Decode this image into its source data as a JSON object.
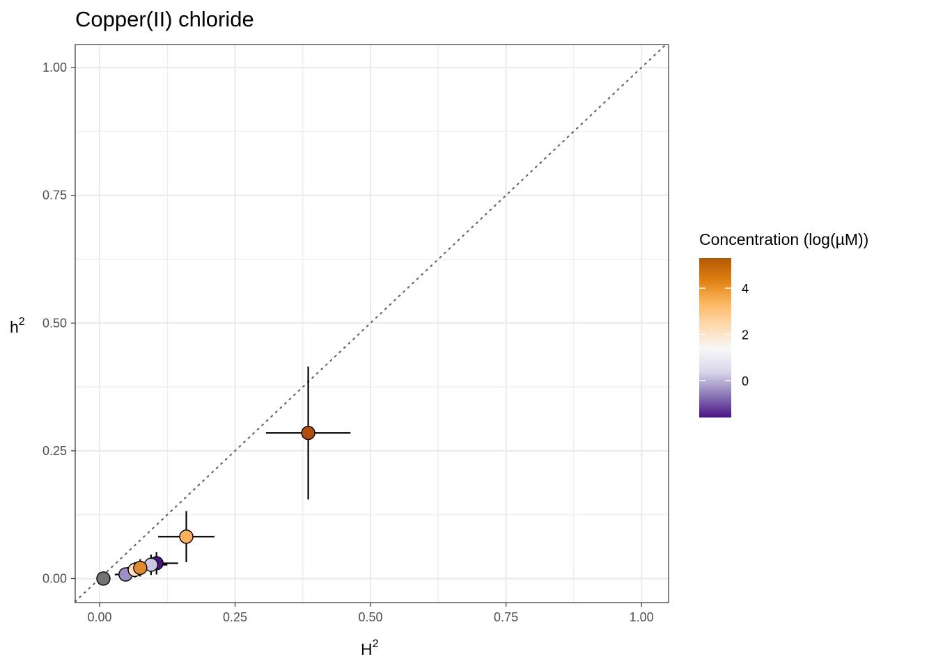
{
  "chart_data": {
    "type": "scatter",
    "title": "Copper(II) chloride",
    "xlabel": "H",
    "xlabel_superscript": "2",
    "ylabel": "h",
    "ylabel_superscript": "2",
    "xlim": [
      -0.045,
      1.05
    ],
    "ylim": [
      -0.047,
      1.045
    ],
    "x_ticks": [
      0.0,
      0.25,
      0.5,
      0.75,
      1.0
    ],
    "x_tick_labels": [
      "0.00",
      "0.25",
      "0.50",
      "0.75",
      "1.00"
    ],
    "y_ticks": [
      0.0,
      0.25,
      0.5,
      0.75,
      1.0
    ],
    "y_tick_labels": [
      "0.00",
      "0.25",
      "0.50",
      "0.75",
      "1.00"
    ],
    "grid": true,
    "reference_line": {
      "slope": 1,
      "intercept": 0,
      "style": "dotted",
      "color": "#666666"
    },
    "legend": {
      "title": "Concentration (log(µM))",
      "position": "right",
      "type": "colorbar",
      "range": [
        -1.6,
        5.3
      ],
      "ticks": [
        0,
        2,
        4
      ],
      "tick_labels": [
        "0",
        "2",
        "4"
      ],
      "colors": [
        "#4a1486",
        "#8c7ab8",
        "#d8d6ea",
        "#f7f7f7",
        "#fddbb3",
        "#fdb863",
        "#e08214",
        "#b35806"
      ]
    },
    "points": [
      {
        "x": 0.007,
        "y": 0.0,
        "xerr": 0.0,
        "yerr": 0.0,
        "concentration": null,
        "color": "#737373"
      },
      {
        "x": 0.105,
        "y": 0.03,
        "xerr": 0.04,
        "yerr": 0.022,
        "concentration": -1.5,
        "color": "#4a1486"
      },
      {
        "x": 0.048,
        "y": 0.008,
        "xerr": 0.02,
        "yerr": 0.012,
        "concentration": -0.2,
        "color": "#9e8ec4"
      },
      {
        "x": 0.095,
        "y": 0.027,
        "xerr": 0.03,
        "yerr": 0.02,
        "concentration": 0.7,
        "color": "#cbc6e1"
      },
      {
        "x": 0.065,
        "y": 0.017,
        "xerr": 0.025,
        "yerr": 0.015,
        "concentration": 2.5,
        "color": "#fde0c0"
      },
      {
        "x": 0.075,
        "y": 0.021,
        "xerr": 0.025,
        "yerr": 0.017,
        "concentration": 4.3,
        "color": "#e08a32"
      },
      {
        "x": 0.16,
        "y": 0.082,
        "xerr": 0.052,
        "yerr": 0.05,
        "concentration": 3.9,
        "color": "#fdb05e"
      },
      {
        "x": 0.385,
        "y": 0.285,
        "xerr": 0.078,
        "yerr": 0.13,
        "concentration": 5.2,
        "color": "#b04e0f"
      }
    ]
  }
}
